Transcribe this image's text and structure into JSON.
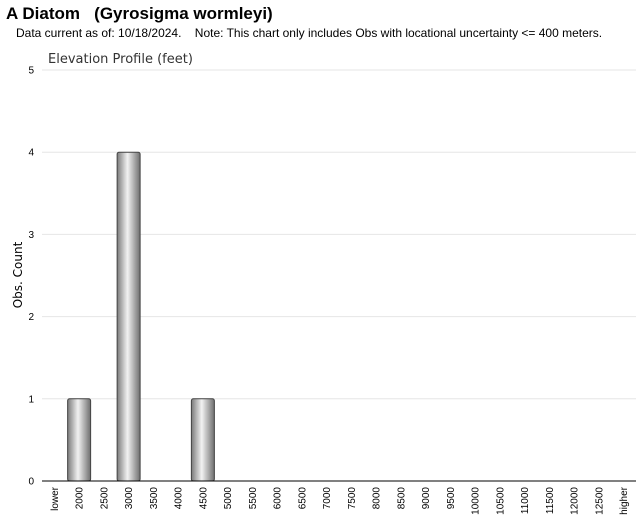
{
  "header": {
    "common_name": "A Diatom",
    "scientific_name": "(Gyrosigma wormleyi)",
    "data_current": "Data current as of: 10/18/2024.",
    "note": "Note: This chart only includes Obs with locational uncertainty <= 400 meters."
  },
  "chart_data": {
    "type": "bar",
    "title": "Elevation Profile (feet)",
    "xlabel": "",
    "ylabel": "Obs. Count",
    "ylim": [
      0,
      5
    ],
    "yticks": [
      0,
      1,
      2,
      3,
      4,
      5
    ],
    "grid": true,
    "categories": [
      "lower",
      "2000",
      "2500",
      "3000",
      "3500",
      "4000",
      "4500",
      "5000",
      "5500",
      "6000",
      "6500",
      "7000",
      "7500",
      "8000",
      "8500",
      "9000",
      "9500",
      "10000",
      "10500",
      "11000",
      "11500",
      "12000",
      "12500",
      "higher"
    ],
    "values": [
      0,
      1,
      0,
      4,
      0,
      0,
      1,
      0,
      0,
      0,
      0,
      0,
      0,
      0,
      0,
      0,
      0,
      0,
      0,
      0,
      0,
      0,
      0,
      0
    ],
    "bar_color": "#b0b0b0",
    "grid_color": "#e6e6e6"
  }
}
